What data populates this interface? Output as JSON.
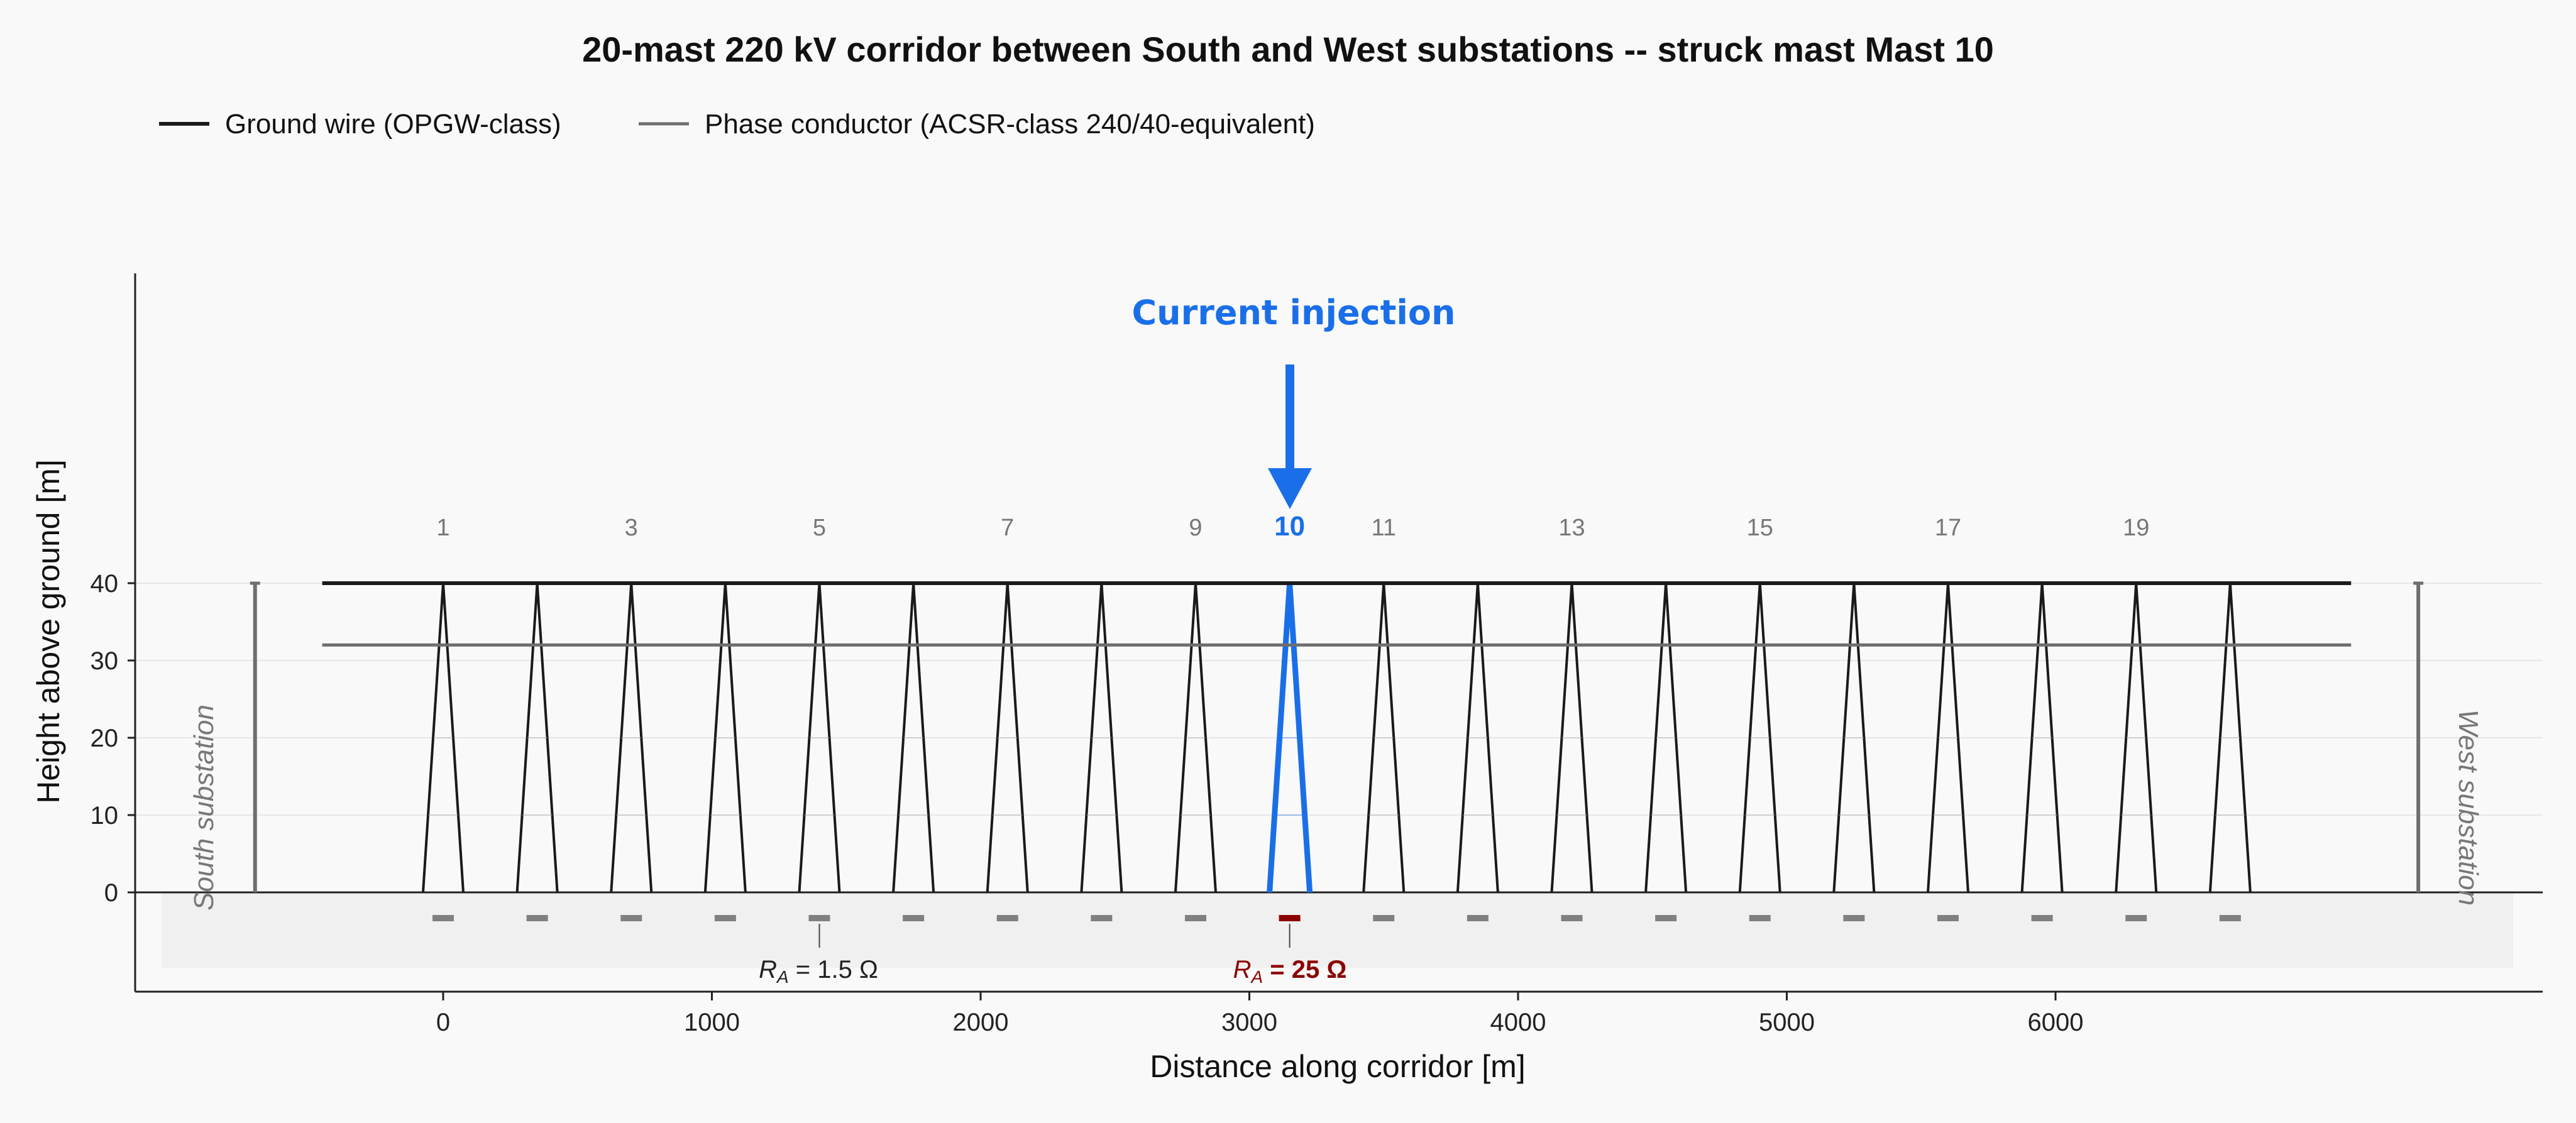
{
  "title": "20-mast 220 kV corridor between South and West substations -- struck mast Mast 10",
  "legend": {
    "ground_wire": "Ground wire (OPGW-class)",
    "phase_conductor": "Phase conductor (ACSR-class 240/40-equivalent)"
  },
  "axes": {
    "xlabel": "Distance along corridor [m]",
    "ylabel": "Height above ground [m]",
    "x_ticks": [
      "0",
      "1000",
      "2000",
      "3000",
      "4000",
      "5000",
      "6000"
    ],
    "y_ticks": [
      "0",
      "10",
      "20",
      "30",
      "40"
    ]
  },
  "annotations": {
    "injection": "Current injection",
    "struck_mast_number": "10",
    "south_substation": "South substation",
    "west_substation": "West substation",
    "ra_normal": "R",
    "ra_normal_sub": "A",
    "ra_normal_value": " = 1.5 Ω",
    "ra_struck": "R",
    "ra_struck_sub": "A",
    "ra_struck_value": " = 25 Ω"
  },
  "mast_labels": [
    "1",
    "3",
    "5",
    "7",
    "9",
    "11",
    "13",
    "15",
    "17",
    "19"
  ],
  "colors": {
    "ground_wire": "#1a1a1a",
    "phase_conductor": "#6e6e6e",
    "mast": "#1a1a1a",
    "struck_mast": "#1a6fe8",
    "struck_grounding": "#8b0000",
    "grounding": "#808080",
    "soil_band": "#f0f0f0"
  },
  "chart_data": {
    "type": "diagram",
    "mast_count": 20,
    "span_m": 350,
    "mast_positions_m": [
      0,
      350,
      700,
      1050,
      1400,
      1750,
      2100,
      2450,
      2800,
      3150,
      3500,
      3850,
      4200,
      4550,
      4900,
      5250,
      5600,
      5950,
      6300,
      6650
    ],
    "struck_mast_index": 10,
    "ground_wire_height_m": 40,
    "phase_conductor_height_m": 32,
    "south_substation_x_m": -700,
    "west_substation_x_m": 7350,
    "line_span_m": [
      -450,
      7100
    ],
    "ra_normal_ohm": 1.5,
    "ra_struck_ohm": 25,
    "xlim": [
      -1150,
      7850
    ],
    "ylim": [
      -13,
      80
    ]
  }
}
